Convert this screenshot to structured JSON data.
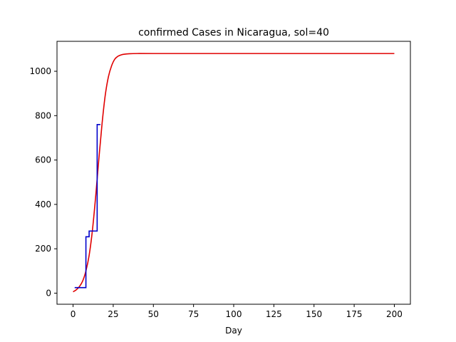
{
  "chart_data": {
    "type": "line",
    "title": "confirmed Cases in Nicaragua, sol=40",
    "xlabel": "Day",
    "ylabel": "",
    "xlim": [
      -10,
      210
    ],
    "ylim": [
      -50,
      1135
    ],
    "xticks": [
      0,
      25,
      50,
      75,
      100,
      125,
      150,
      175,
      200
    ],
    "yticks": [
      0,
      200,
      400,
      600,
      800,
      1000
    ],
    "grid": false,
    "legend": "none",
    "series": [
      {
        "kind": "model-curve",
        "color": "#e00000",
        "x": [
          0,
          2,
          4,
          6,
          8,
          10,
          12,
          14,
          16,
          18,
          20,
          22,
          24,
          26,
          28,
          30,
          32,
          35,
          40,
          50,
          75,
          100,
          125,
          150,
          175,
          200
        ],
        "y": [
          6,
          15,
          30,
          55,
          100,
          170,
          280,
          430,
          600,
          760,
          890,
          975,
          1025,
          1055,
          1068,
          1074,
          1077,
          1079,
          1080,
          1080,
          1080,
          1080,
          1080,
          1080,
          1080,
          1080
        ]
      },
      {
        "kind": "observed-steps",
        "color": "#0000cc",
        "x": [
          1,
          2,
          3,
          4,
          5,
          6,
          7,
          8,
          9,
          10,
          11,
          12,
          13,
          14,
          15,
          16,
          17
        ],
        "y": [
          25,
          25,
          25,
          25,
          25,
          25,
          25,
          254,
          254,
          280,
          280,
          280,
          280,
          280,
          760,
          760,
          760
        ]
      }
    ]
  }
}
